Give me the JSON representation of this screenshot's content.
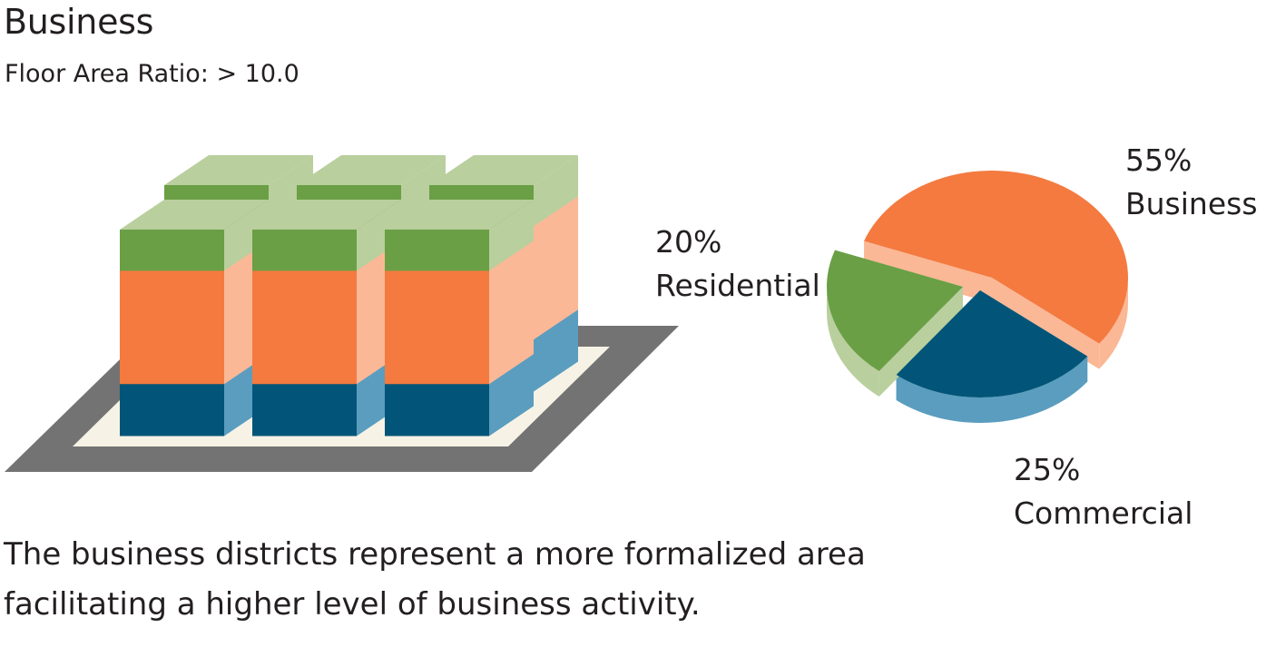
{
  "title": "Business",
  "subtitle": "Floor Area Ratio: > 10.0",
  "description": "The business districts represent a more formalized area facilitating a higher level of business activity.",
  "colors": {
    "business": "#f47a40",
    "business_light": "#fbb896",
    "residential": "#6a9f45",
    "residential_light": "#b9cf9e",
    "commercial": "#025578",
    "commercial_light": "#5a9dbf",
    "ground": "#737373",
    "plaza": "#f6f3e6"
  },
  "chart_data": {
    "type": "pie",
    "title": "",
    "slices": [
      {
        "category": "Business",
        "value": 55,
        "label": "55%",
        "name": "Business"
      },
      {
        "category": "Commercial",
        "value": 25,
        "label": "25%",
        "name": "Commercial"
      },
      {
        "category": "Residential",
        "value": 20,
        "label": "20%",
        "name": "Residential"
      }
    ]
  },
  "building_layers": [
    {
      "name": "Residential",
      "share": 20
    },
    {
      "name": "Business",
      "share": 55
    },
    {
      "name": "Commercial",
      "share": 25
    }
  ]
}
